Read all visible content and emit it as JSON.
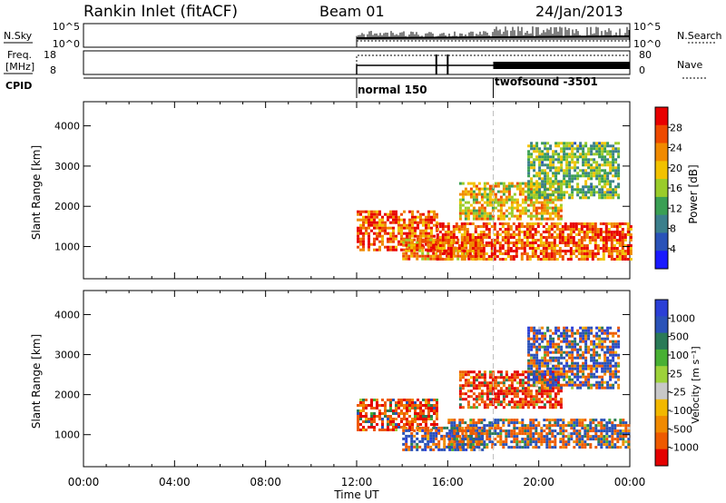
{
  "header": {
    "station": "Rankin Inlet (fitACF)",
    "beam": "Beam 01",
    "date": "24/Jan/2013"
  },
  "summary_panels": {
    "nsky": {
      "label": "N.Sky",
      "ticks": [
        "10^5",
        "10^0"
      ]
    },
    "nsearch": {
      "label": "N.Search",
      "ticks": [
        "10^5",
        "10^0"
      ]
    },
    "freq": {
      "label_line1": "Freq.",
      "label_line2": "[MHz]",
      "ticks": [
        "18",
        "8"
      ]
    },
    "nave": {
      "label": "Nave",
      "ticks": [
        "80",
        "0"
      ]
    },
    "cpid": {
      "label": "CPID",
      "modes": [
        {
          "name": "normal 150",
          "start": 12.0
        },
        {
          "name": "twofsound -3501",
          "start": 18.0
        }
      ]
    }
  },
  "time_axis": {
    "label": "Time UT",
    "ticks": [
      "00:00",
      "04:00",
      "08:00",
      "12:00",
      "16:00",
      "20:00",
      "00:00"
    ],
    "range_hours": [
      0,
      24
    ]
  },
  "colors": {
    "power_scale": [
      "#1a1aff",
      "#2a52b8",
      "#3b7f8c",
      "#3a9f54",
      "#9acc2a",
      "#f2c200",
      "#f08a00",
      "#ee4a00",
      "#e80000"
    ],
    "velocity_scale": [
      "#2b3fd6",
      "#2a52b8",
      "#2a7a57",
      "#48b033",
      "#9dd23a",
      "#c8c8c8",
      "#f2b800",
      "#f08a00",
      "#ee5a00",
      "#e40000"
    ],
    "dashed_line": "#bfbfbf"
  },
  "chart_data": [
    {
      "type": "heatmap",
      "title": "",
      "xlabel": "Time UT",
      "ylabel": "Slant Range [km]",
      "x_range_hours": [
        0,
        24
      ],
      "ylim": [
        200,
        4600
      ],
      "yticks": [
        1000,
        2000,
        3000,
        4000
      ],
      "colorbar": {
        "label": "Power [dB]",
        "ticks": [
          "28",
          "24",
          "20",
          "16",
          "12",
          "8",
          "4"
        ],
        "range": [
          0,
          32
        ]
      },
      "echo_regions": [
        {
          "t_start": 12.0,
          "t_end": 15.5,
          "range_min": 900,
          "range_max": 1900,
          "value": 26
        },
        {
          "t_start": 14.0,
          "t_end": 17.5,
          "range_min": 700,
          "range_max": 1200,
          "value": 24
        },
        {
          "t_start": 15.5,
          "t_end": 24.0,
          "range_min": 700,
          "range_max": 1600,
          "value": 26
        },
        {
          "t_start": 16.5,
          "t_end": 21.0,
          "range_min": 1700,
          "range_max": 2600,
          "value": 20
        },
        {
          "t_start": 19.5,
          "t_end": 23.5,
          "range_min": 2200,
          "range_max": 3600,
          "value": 14
        }
      ]
    },
    {
      "type": "heatmap",
      "title": "",
      "xlabel": "Time UT",
      "ylabel": "Slant Range [km]",
      "x_range_hours": [
        0,
        24
      ],
      "ylim": [
        200,
        4600
      ],
      "yticks": [
        1000,
        2000,
        3000,
        4000
      ],
      "colorbar": {
        "label": "Velocity [m s⁻¹]",
        "ticks": [
          "1000",
          "500",
          "100",
          "25",
          "-25",
          "-100",
          "-500",
          "-1000"
        ],
        "range": [
          -1000,
          1000
        ]
      },
      "echo_regions": [
        {
          "t_start": 12.0,
          "t_end": 15.5,
          "range_min": 1100,
          "range_max": 1900,
          "value": -150
        },
        {
          "t_start": 14.0,
          "t_end": 17.5,
          "range_min": 600,
          "range_max": 1200,
          "value": 60
        },
        {
          "t_start": 16.0,
          "t_end": 24.0,
          "range_min": 700,
          "range_max": 1400,
          "value": 0
        },
        {
          "t_start": 16.5,
          "t_end": 21.0,
          "range_min": 1700,
          "range_max": 2600,
          "value": -200
        },
        {
          "t_start": 19.5,
          "t_end": 23.5,
          "range_min": 2200,
          "range_max": 3700,
          "value": 80
        }
      ]
    }
  ]
}
